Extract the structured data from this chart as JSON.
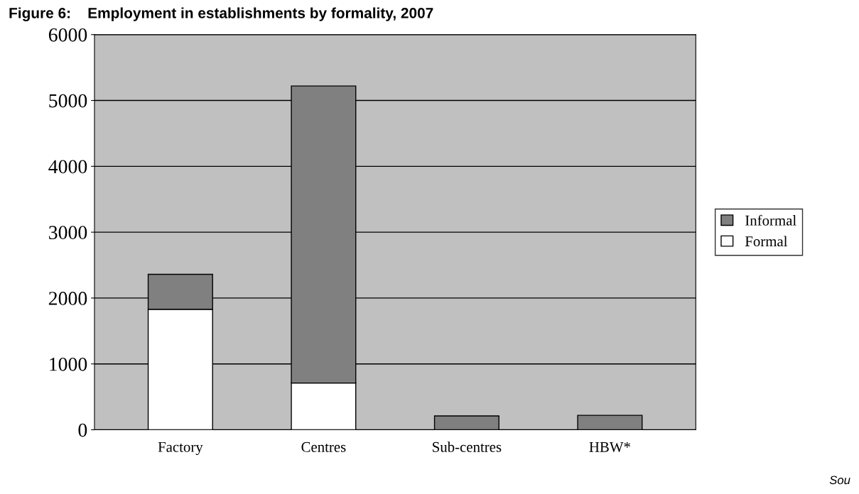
{
  "chart_data": {
    "type": "bar",
    "title": "Figure 6:    Employment in establishments by formality, 2007",
    "categories": [
      "Factory",
      "Centres",
      "Sub-centres",
      "HBW*"
    ],
    "stacked": true,
    "series": [
      {
        "name": "Formal",
        "color": "#ffffff",
        "values": [
          1830,
          710,
          0,
          0
        ]
      },
      {
        "name": "Informal",
        "color": "#808080",
        "values": [
          530,
          4510,
          210,
          220
        ]
      }
    ],
    "ylim": [
      0,
      6000
    ],
    "yticks": [
      0,
      1000,
      2000,
      3000,
      4000,
      5000,
      6000
    ],
    "grid": "y",
    "legend": "right",
    "annotations": [
      "Sou"
    ]
  }
}
